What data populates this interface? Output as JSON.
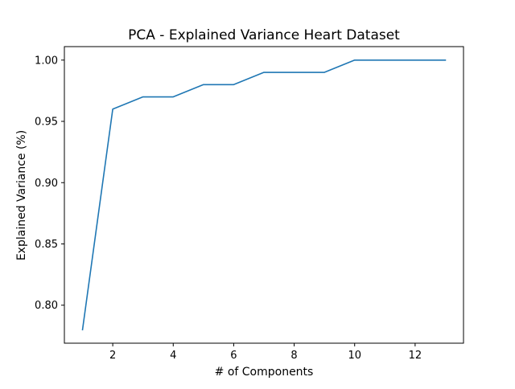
{
  "chart_data": {
    "type": "line",
    "title": "PCA - Explained Variance Heart Dataset",
    "xlabel": "# of Components",
    "ylabel": "Explained Variance (%)",
    "xlim": [
      0.4,
      13.6
    ],
    "ylim": [
      0.769,
      1.011
    ],
    "xticks": [
      2,
      4,
      6,
      8,
      10,
      12
    ],
    "yticks": [
      0.8,
      0.85,
      0.9,
      0.95,
      1.0
    ],
    "xtick_labels": [
      "2",
      "4",
      "6",
      "8",
      "10",
      "12"
    ],
    "ytick_labels": [
      "0.80",
      "0.85",
      "0.90",
      "0.95",
      "1.00"
    ],
    "grid": false,
    "legend": null,
    "series": [
      {
        "color": "#1f77b4",
        "x": [
          1,
          2,
          3,
          4,
          5,
          6,
          7,
          8,
          9,
          10,
          11,
          12,
          13
        ],
        "y": [
          0.78,
          0.96,
          0.97,
          0.97,
          0.98,
          0.98,
          0.99,
          0.99,
          0.99,
          1.0,
          1.0,
          1.0,
          1.0
        ]
      }
    ]
  }
}
